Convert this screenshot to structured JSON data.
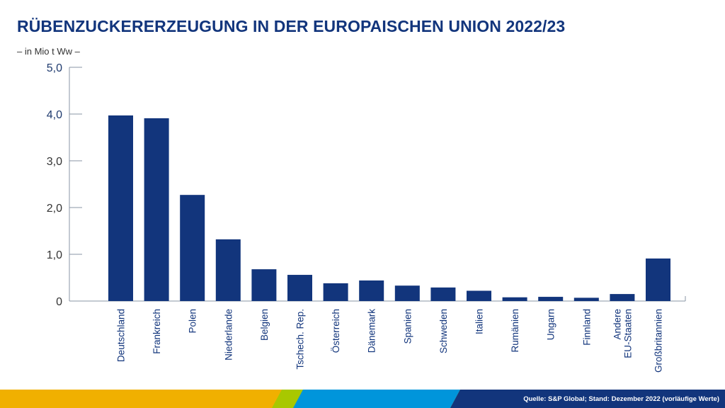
{
  "title": "RÜBENZUCKERERZEUGUNG IN DER EUROPAISCHEN UNION 2022/23",
  "subtitle": "– in Mio t Ww –",
  "source": "Quelle: S&P Global; Stand: Dezember 2022 (vorläufige Werte)",
  "colors": {
    "bar": "#12357c",
    "axis": "#8a94a6",
    "tick_label": "#333333",
    "category_label": "#12357c",
    "footer_orange": "#f0b000",
    "footer_green": "#a8c800",
    "footer_blue": "#0095db",
    "footer_navy": "#12357c"
  },
  "chart_data": {
    "type": "bar",
    "title": "RÜBENZUCKERERZEUGUNG IN DER EUROPAISCHEN UNION 2022/23",
    "xlabel": "",
    "ylabel": "in Mio t Ww",
    "ylim": [
      0,
      5
    ],
    "yticks": [
      0,
      1,
      2,
      3,
      4,
      5
    ],
    "ytick_labels": [
      "0",
      "1,0",
      "2,0",
      "3,0",
      "4,0",
      "5,0"
    ],
    "grid": false,
    "legend": "none",
    "categories": [
      "Deutschland",
      "Frankreich",
      "Polen",
      "Niederlande",
      "Belgien",
      "Tschech. Rep.",
      "Österreich",
      "Dänemark",
      "Spanien",
      "Schweden",
      "Italien",
      "Rumänien",
      "Ungarn",
      "Finnland",
      "Andere\nEU-Staaten",
      "Großbritannien"
    ],
    "values": [
      3.97,
      3.91,
      2.27,
      1.32,
      0.68,
      0.56,
      0.38,
      0.44,
      0.33,
      0.29,
      0.22,
      0.08,
      0.09,
      0.07,
      0.15,
      0.91
    ]
  }
}
